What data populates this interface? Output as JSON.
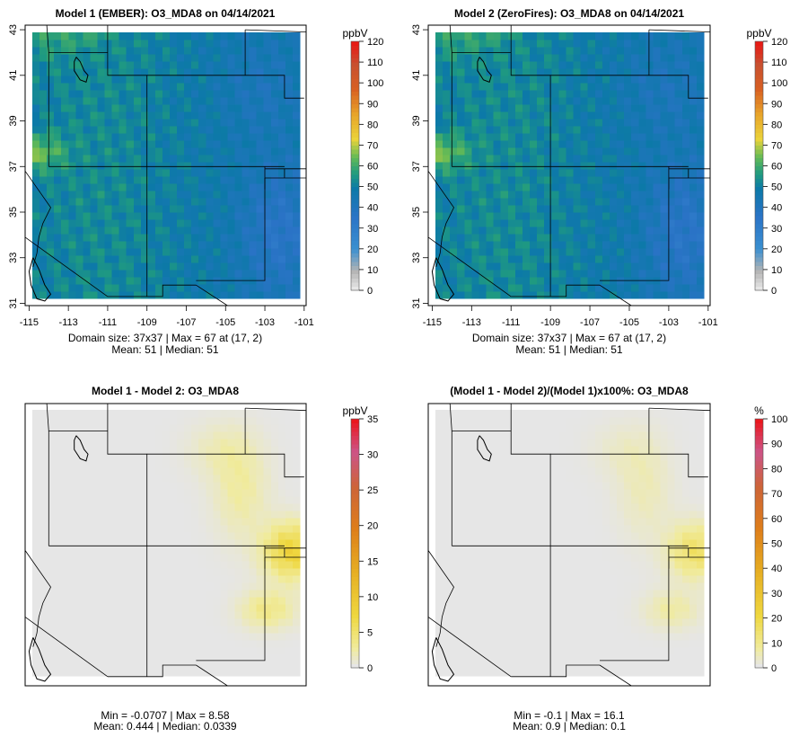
{
  "chart_data": [
    {
      "type": "heatmap",
      "title": "Model 1 (EMBER): O3_MDA8 on 04/14/2021",
      "unit": "ppbV",
      "x_ticks": [
        "-115",
        "-113",
        "-111",
        "-109",
        "-107",
        "-105",
        "-103",
        "-101"
      ],
      "y_ticks": [
        "31",
        "33",
        "35",
        "37",
        "39",
        "41",
        "43"
      ],
      "xlim": [
        -115.2,
        -100.9
      ],
      "ylim": [
        30.9,
        43.2
      ],
      "show_axes": true,
      "colorbar_ticks": [
        "0",
        "10",
        "20",
        "30",
        "40",
        "50",
        "60",
        "70",
        "80",
        "90",
        "100",
        "110",
        "120"
      ],
      "colorbar_range": [
        0,
        120
      ],
      "stats": [
        "Domain size: 37x37 | Max = 67 at (17, 2)",
        "Mean: 51 |  Median: 51"
      ],
      "grid_size": [
        37,
        37
      ],
      "field": "ozone"
    },
    {
      "type": "heatmap",
      "title": "Model 2 (ZeroFires): O3_MDA8 on 04/14/2021",
      "unit": "ppbV",
      "x_ticks": [
        "-115",
        "-113",
        "-111",
        "-109",
        "-107",
        "-105",
        "-103",
        "-101"
      ],
      "y_ticks": [
        "31",
        "33",
        "35",
        "37",
        "39",
        "41",
        "43"
      ],
      "xlim": [
        -115.2,
        -100.9
      ],
      "ylim": [
        30.9,
        43.2
      ],
      "show_axes": true,
      "colorbar_ticks": [
        "0",
        "10",
        "20",
        "30",
        "40",
        "50",
        "60",
        "70",
        "80",
        "90",
        "100",
        "110",
        "120"
      ],
      "colorbar_range": [
        0,
        120
      ],
      "stats": [
        "Domain size: 37x37 | Max = 67 at (17, 2)",
        "Mean: 51 |  Median: 51"
      ],
      "grid_size": [
        37,
        37
      ],
      "field": "ozone"
    },
    {
      "type": "heatmap",
      "title": "Model 1 - Model 2: O3_MDA8",
      "unit": "ppbV",
      "x_ticks": [],
      "y_ticks": [],
      "xlim": [
        -115.2,
        -100.9
      ],
      "ylim": [
        30.9,
        43.2
      ],
      "show_axes": false,
      "colorbar_ticks": [
        "0",
        "5",
        "10",
        "15",
        "20",
        "25",
        "30",
        "35"
      ],
      "colorbar_range": [
        0,
        35
      ],
      "stats": [
        "Min = -0.0707 | Max = 8.58",
        "Mean: 0.444 |  Median: 0.0339"
      ],
      "grid_size": [
        37,
        37
      ],
      "field": "diff",
      "max": 8.58
    },
    {
      "type": "heatmap",
      "title": "(Model 1 - Model 2)/(Model 1)x100%: O3_MDA8",
      "unit": "%",
      "x_ticks": [],
      "y_ticks": [],
      "xlim": [
        -115.2,
        -100.9
      ],
      "ylim": [
        30.9,
        43.2
      ],
      "show_axes": false,
      "colorbar_ticks": [
        "0",
        "10",
        "20",
        "30",
        "40",
        "50",
        "60",
        "70",
        "80",
        "90",
        "100"
      ],
      "colorbar_range": [
        0,
        100
      ],
      "stats": [
        "Min = -0.1 | Max = 16.1",
        "Mean: 0.9 |  Median: 0.1"
      ],
      "grid_size": [
        37,
        37
      ],
      "field": "diff",
      "max": 16.1
    }
  ]
}
